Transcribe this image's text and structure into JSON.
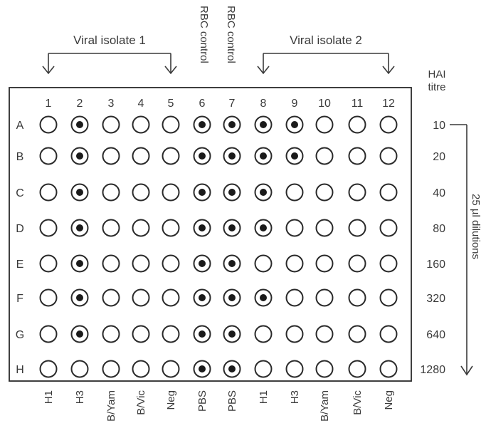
{
  "header": {
    "isolate1_label": "Viral isolate 1",
    "isolate2_label": "Viral isolate 2",
    "rbc_control_6": "RBC control",
    "rbc_control_7": "RBC control"
  },
  "hai": {
    "title_line1": "HAI",
    "title_line2": "titre",
    "values": [
      "10",
      "20",
      "40",
      "80",
      "160",
      "320",
      "640",
      "1280"
    ],
    "dilution_label": "25 µl dilutions"
  },
  "plate": {
    "columns": [
      "1",
      "2",
      "3",
      "4",
      "5",
      "6",
      "7",
      "8",
      "9",
      "10",
      "11",
      "12"
    ],
    "rows": [
      "A",
      "B",
      "C",
      "D",
      "E",
      "F",
      "G",
      "H"
    ],
    "column_labels": [
      "H1",
      "H3",
      "B/Yam",
      "B/Vic",
      "Neg",
      "PBS",
      "PBS",
      "H1",
      "H3",
      "B/Yam",
      "B/Vic",
      "Neg"
    ],
    "dotted_wells": [
      [
        0,
        1,
        0,
        0,
        0,
        1,
        1,
        1,
        1,
        0,
        0,
        0
      ],
      [
        0,
        1,
        0,
        0,
        0,
        1,
        1,
        1,
        1,
        0,
        0,
        0
      ],
      [
        0,
        1,
        0,
        0,
        0,
        1,
        1,
        1,
        0,
        0,
        0,
        0
      ],
      [
        0,
        1,
        0,
        0,
        0,
        1,
        1,
        1,
        0,
        0,
        0,
        0
      ],
      [
        0,
        1,
        0,
        0,
        0,
        1,
        1,
        0,
        0,
        0,
        0,
        0
      ],
      [
        0,
        1,
        0,
        0,
        0,
        1,
        1,
        1,
        0,
        0,
        0,
        0
      ],
      [
        0,
        1,
        0,
        0,
        0,
        1,
        1,
        0,
        0,
        0,
        0,
        0
      ],
      [
        0,
        0,
        0,
        0,
        0,
        1,
        1,
        0,
        0,
        0,
        0,
        0
      ]
    ]
  },
  "colors": {
    "ink": "#3a3a3a",
    "well_stroke": "#2a2a2a",
    "dot": "#1a1a1a"
  }
}
